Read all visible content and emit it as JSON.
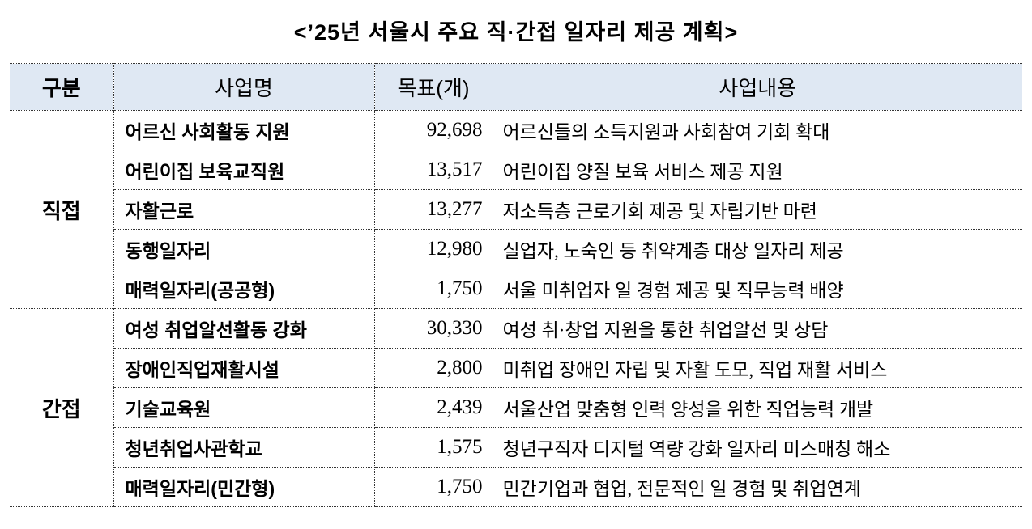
{
  "title": "<’25년 서울시 주요 직·간접 일자리 제공 계획>",
  "headers": [
    "구분",
    "사업명",
    "목표(개)",
    "사업내용"
  ],
  "groups": [
    {
      "label": "직접",
      "rows": [
        {
          "name": "어르신 사회활동 지원",
          "target": "92,698",
          "desc": "어르신들의 소득지원과 사회참여 기회 확대"
        },
        {
          "name": "어린이집 보육교직원",
          "target": "13,517",
          "desc": "어린이집 양질 보육 서비스 제공 지원"
        },
        {
          "name": "자활근로",
          "target": "13,277",
          "desc": "저소득층 근로기회 제공 및 자립기반 마련"
        },
        {
          "name": "동행일자리",
          "target": "12,980",
          "desc": "실업자, 노숙인 등 취약계층 대상 일자리 제공"
        },
        {
          "name": "매력일자리(공공형)",
          "target": "1,750",
          "desc": "서울 미취업자 일 경험 제공 및 직무능력 배양"
        }
      ]
    },
    {
      "label": "간접",
      "rows": [
        {
          "name": "여성 취업알선활동 강화",
          "target": "30,330",
          "desc": "여성 취·창업 지원을 통한 취업알선 및 상담"
        },
        {
          "name": "장애인직업재활시설",
          "target": "2,800",
          "desc": "미취업 장애인 자립 및 자활 도모, 직업 재활 서비스"
        },
        {
          "name": "기술교육원",
          "target": "2,439",
          "desc": "서울산업 맞춤형 인력 양성을 위한 직업능력 개발"
        },
        {
          "name": "청년취업사관학교",
          "target": "1,575",
          "desc": "청년구직자 디지털 역량 강화 일자리 미스매칭 해소"
        },
        {
          "name": "매력일자리(민간형)",
          "target": "1,750",
          "desc": "민간기업과 협업, 전문적인 일 경험 및 취업연계"
        }
      ]
    }
  ],
  "colors": {
    "header_bg": "#dfe8f3"
  }
}
